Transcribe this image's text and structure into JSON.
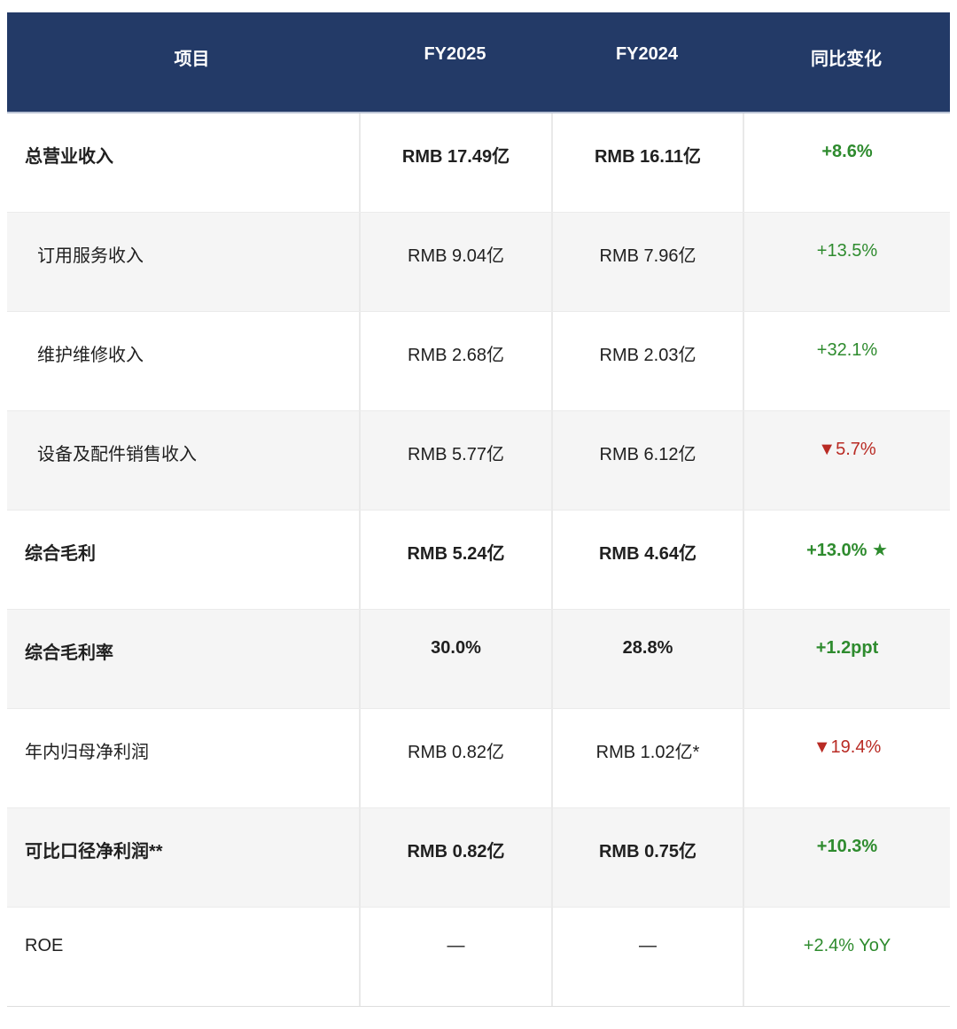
{
  "header": {
    "columns": [
      "项目",
      "FY2025",
      "FY2024",
      "同比变化"
    ]
  },
  "rows": [
    {
      "label": "总营业收入",
      "fy2025": "RMB 17.49亿",
      "fy2024": "RMB 16.11亿",
      "change": "+8.6%",
      "bold": true,
      "indent": false,
      "change_color": "green"
    },
    {
      "label": "订用服务收入",
      "fy2025": "RMB 9.04亿",
      "fy2024": "RMB 7.96亿",
      "change": "+13.5%",
      "bold": false,
      "indent": true,
      "change_color": "green"
    },
    {
      "label": "维护维修收入",
      "fy2025": "RMB 2.68亿",
      "fy2024": "RMB 2.03亿",
      "change": "+32.1%",
      "bold": false,
      "indent": true,
      "change_color": "green"
    },
    {
      "label": "设备及配件销售收入",
      "fy2025": "RMB 5.77亿",
      "fy2024": "RMB 6.12亿",
      "change": "▼5.7%",
      "bold": false,
      "indent": true,
      "change_color": "red"
    },
    {
      "label": "综合毛利",
      "fy2025": "RMB 5.24亿",
      "fy2024": "RMB 4.64亿",
      "change": "+13.0% ★",
      "bold": true,
      "indent": false,
      "change_color": "green"
    },
    {
      "label": "综合毛利率",
      "fy2025": "30.0%",
      "fy2024": "28.8%",
      "change": "+1.2ppt",
      "bold": true,
      "indent": false,
      "change_color": "green"
    },
    {
      "label": "年内归母净利润",
      "fy2025": "RMB 0.82亿",
      "fy2024": "RMB 1.02亿*",
      "change": "▼19.4%",
      "bold": false,
      "indent": false,
      "change_color": "red"
    },
    {
      "label": "可比口径净利润**",
      "fy2025": "RMB 0.82亿",
      "fy2024": "RMB 0.75亿",
      "change": "+10.3%",
      "bold": true,
      "indent": false,
      "change_color": "green"
    },
    {
      "label": "ROE",
      "fy2025": "—",
      "fy2024": "—",
      "change": "+2.4% YoY",
      "bold": false,
      "indent": false,
      "change_color": "green"
    }
  ],
  "styles": {
    "header_bg": "#233a67",
    "header_text": "#ffffff",
    "row_alt_bg": "#f5f5f5",
    "green": "#2e8b2e",
    "red": "#b92b24",
    "divider": "#e9e9e9"
  },
  "chart_data": {
    "type": "table",
    "title": "",
    "columns": [
      "项目",
      "FY2025",
      "FY2024",
      "同比变化"
    ],
    "rows": [
      [
        "总营业收入",
        "RMB 17.49亿",
        "RMB 16.11亿",
        "+8.6%"
      ],
      [
        "订用服务收入",
        "RMB 9.04亿",
        "RMB 7.96亿",
        "+13.5%"
      ],
      [
        "维护维修收入",
        "RMB 2.68亿",
        "RMB 2.03亿",
        "+32.1%"
      ],
      [
        "设备及配件销售收入",
        "RMB 5.77亿",
        "RMB 6.12亿",
        "▼5.7%"
      ],
      [
        "综合毛利",
        "RMB 5.24亿",
        "RMB 4.64亿",
        "+13.0% ★"
      ],
      [
        "综合毛利率",
        "30.0%",
        "28.8%",
        "+1.2ppt"
      ],
      [
        "年内归母净利润",
        "RMB 0.82亿",
        "RMB 1.02亿*",
        "▼19.4%"
      ],
      [
        "可比口径净利润**",
        "RMB 0.82亿",
        "RMB 0.75亿",
        "+10.3%"
      ],
      [
        "ROE",
        "—",
        "—",
        "+2.4% YoY"
      ]
    ],
    "layout_hints": {
      "header_style": "dark navy bar, white bold centered text",
      "alternating_rows": true,
      "positive_color": "green",
      "negative_color": "red"
    }
  }
}
